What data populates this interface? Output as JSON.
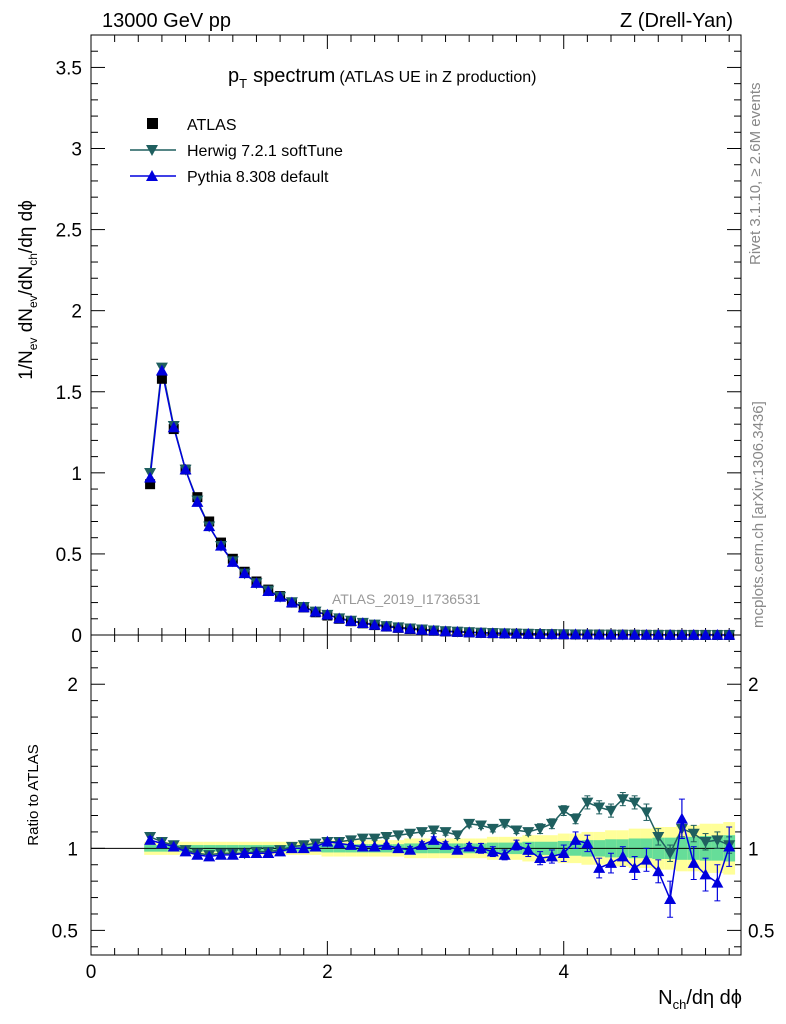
{
  "header": {
    "left": "13000 GeV pp",
    "right": "Z (Drell-Yan)"
  },
  "side_labels": {
    "rivet": "Rivet 3.1.10, ≥ 2.6M events",
    "mcplots": "mcplots.cern.ch [arXiv:1306.3436]"
  },
  "chart_data": {
    "type": "scatter",
    "title": "p_T spectrum",
    "title_parts": {
      "p": "p",
      "sub": "T",
      "rest": "spectrum",
      "note": "(ATLAS UE in Z production)"
    },
    "analysis_id": "ATLAS_2019_I1736531",
    "xlabel": {
      "main": "N",
      "sub": "ch",
      "rest": "/dη dϕ"
    },
    "ylabel": "1/N_ev dN_ev/dN_ch/dη dϕ",
    "ylabel_parts": {
      "a": "1/N",
      "a_sub": "ev",
      "b": " dN",
      "b_sub": "ev",
      "c": "/dN",
      "c_sub": "ch",
      "d": "/dη dϕ"
    },
    "ratio_ylabel": "Ratio to ATLAS",
    "xlim": [
      0,
      5.5
    ],
    "ylim": [
      0,
      3.7
    ],
    "ratio_ylim": [
      0.35,
      2.3
    ],
    "x_ticks": [
      "0",
      "2",
      "4"
    ],
    "y_ticks": [
      "0",
      "0.5",
      "1",
      "1.5",
      "2",
      "2.5",
      "3",
      "3.5"
    ],
    "ratio_ticks": [
      "0.5",
      "1",
      "2"
    ],
    "legend": {
      "placement": "top-left"
    },
    "x": [
      0.5,
      0.6,
      0.7,
      0.8,
      0.9,
      1.0,
      1.1,
      1.2,
      1.3,
      1.4,
      1.5,
      1.6,
      1.7,
      1.8,
      1.9,
      2.0,
      2.1,
      2.2,
      2.3,
      2.4,
      2.5,
      2.6,
      2.7,
      2.8,
      2.9,
      3.0,
      3.1,
      3.2,
      3.3,
      3.4,
      3.5,
      3.6,
      3.7,
      3.8,
      3.9,
      4.0,
      4.1,
      4.2,
      4.3,
      4.4,
      4.5,
      4.6,
      4.7,
      4.8,
      4.9,
      5.0,
      5.1,
      5.2,
      5.3,
      5.4
    ],
    "series": [
      {
        "name": "ATLAS",
        "color": "#000000",
        "marker": "square",
        "values": [
          0.93,
          1.58,
          1.27,
          1.02,
          0.85,
          0.7,
          0.57,
          0.47,
          0.39,
          0.33,
          0.28,
          0.24,
          0.2,
          0.17,
          0.14,
          0.12,
          0.1,
          0.085,
          0.072,
          0.061,
          0.052,
          0.044,
          0.037,
          0.031,
          0.026,
          0.022,
          0.019,
          0.016,
          0.013,
          0.011,
          0.0095,
          0.008,
          0.0068,
          0.0057,
          0.0048,
          0.004,
          0.0034,
          0.0029,
          0.0024,
          0.002,
          0.0017,
          0.0014,
          0.0012,
          0.001,
          0.0009,
          0.0007,
          0.0006,
          0.0005,
          0.0004,
          0.0003
        ]
      },
      {
        "name": "Herwig 7.2.1 softTune",
        "color": "#1f5f5f",
        "marker": "triangle-down",
        "values": [
          1.0,
          1.65,
          1.29,
          1.02,
          0.83,
          0.67,
          0.55,
          0.455,
          0.38,
          0.32,
          0.275,
          0.236,
          0.203,
          0.174,
          0.145,
          0.125,
          0.104,
          0.089,
          0.076,
          0.065,
          0.056,
          0.048,
          0.041,
          0.035,
          0.029,
          0.024,
          0.021,
          0.018,
          0.015,
          0.013,
          0.011,
          0.009,
          0.008,
          0.0066,
          0.0056,
          0.0048,
          0.004,
          0.0035,
          0.0029,
          0.0024,
          0.0021,
          0.0017,
          0.0015,
          0.0011,
          0.0009,
          0.0008,
          0.0007,
          0.0006,
          0.0004,
          0.0003
        ]
      },
      {
        "name": "Pythia 8.308 default",
        "color": "#0000dd",
        "marker": "triangle-up",
        "values": [
          0.97,
          1.63,
          1.28,
          1.02,
          0.82,
          0.67,
          0.55,
          0.45,
          0.38,
          0.32,
          0.27,
          0.235,
          0.2,
          0.17,
          0.143,
          0.125,
          0.102,
          0.086,
          0.073,
          0.062,
          0.052,
          0.044,
          0.037,
          0.031,
          0.027,
          0.022,
          0.019,
          0.016,
          0.013,
          0.011,
          0.0095,
          0.008,
          0.0066,
          0.0055,
          0.0047,
          0.0039,
          0.0036,
          0.003,
          0.0022,
          0.0018,
          0.0016,
          0.0012,
          0.0011,
          0.0009,
          0.0006,
          0.0008,
          0.0005,
          0.0004,
          0.0003,
          0.0003
        ]
      }
    ],
    "ratio": {
      "series": [
        {
          "name": "Herwig 7.2.1 softTune",
          "values": [
            1.07,
            1.04,
            1.02,
            0.99,
            0.97,
            0.96,
            0.97,
            0.97,
            0.97,
            0.98,
            0.98,
            0.99,
            1.01,
            1.02,
            1.03,
            1.04,
            1.04,
            1.05,
            1.06,
            1.06,
            1.07,
            1.08,
            1.09,
            1.1,
            1.11,
            1.1,
            1.08,
            1.15,
            1.14,
            1.12,
            1.15,
            1.11,
            1.1,
            1.12,
            1.15,
            1.23,
            1.18,
            1.28,
            1.25,
            1.23,
            1.3,
            1.28,
            1.22,
            1.07,
            0.97,
            1.12,
            1.09,
            1.04,
            1.05,
            1.02
          ],
          "errors": [
            0.02,
            0.01,
            0.01,
            0.01,
            0.01,
            0.01,
            0.01,
            0.01,
            0.01,
            0.01,
            0.01,
            0.01,
            0.01,
            0.01,
            0.01,
            0.01,
            0.01,
            0.01,
            0.01,
            0.01,
            0.01,
            0.01,
            0.01,
            0.01,
            0.02,
            0.02,
            0.02,
            0.02,
            0.02,
            0.02,
            0.02,
            0.02,
            0.02,
            0.03,
            0.03,
            0.03,
            0.03,
            0.04,
            0.04,
            0.04,
            0.04,
            0.04,
            0.05,
            0.05,
            0.05,
            0.05,
            0.05,
            0.05,
            0.05,
            0.05
          ]
        },
        {
          "name": "Pythia 8.308 default",
          "values": [
            1.05,
            1.03,
            1.01,
            0.98,
            0.96,
            0.95,
            0.96,
            0.96,
            0.97,
            0.97,
            0.97,
            0.98,
            1.0,
            1.0,
            1.01,
            1.04,
            1.03,
            1.02,
            1.01,
            1.01,
            1.02,
            1.0,
            0.99,
            1.02,
            1.05,
            1.02,
            0.99,
            1.01,
            1.0,
            0.98,
            0.96,
            1.02,
            0.99,
            0.94,
            0.95,
            0.97,
            1.05,
            1.03,
            0.88,
            0.91,
            0.95,
            0.88,
            0.93,
            0.86,
            0.69,
            1.18,
            0.91,
            0.84,
            0.79,
            1.01
          ],
          "errors": [
            0.02,
            0.01,
            0.01,
            0.01,
            0.01,
            0.01,
            0.01,
            0.01,
            0.01,
            0.01,
            0.01,
            0.01,
            0.01,
            0.01,
            0.01,
            0.01,
            0.01,
            0.01,
            0.01,
            0.01,
            0.01,
            0.01,
            0.02,
            0.02,
            0.02,
            0.02,
            0.02,
            0.02,
            0.03,
            0.03,
            0.03,
            0.03,
            0.04,
            0.04,
            0.04,
            0.05,
            0.05,
            0.05,
            0.06,
            0.06,
            0.06,
            0.07,
            0.07,
            0.07,
            0.11,
            0.12,
            0.1,
            0.1,
            0.11,
            0.12
          ]
        }
      ],
      "band_half_width": [
        0.02,
        0.02,
        0.02,
        0.02,
        0.02,
        0.02,
        0.02,
        0.02,
        0.02,
        0.02,
        0.02,
        0.02,
        0.02,
        0.02,
        0.02,
        0.025,
        0.025,
        0.025,
        0.025,
        0.025,
        0.025,
        0.025,
        0.03,
        0.03,
        0.03,
        0.03,
        0.03,
        0.03,
        0.03,
        0.035,
        0.035,
        0.035,
        0.04,
        0.04,
        0.04,
        0.045,
        0.045,
        0.05,
        0.05,
        0.055,
        0.055,
        0.06,
        0.06,
        0.065,
        0.065,
        0.07,
        0.07,
        0.075,
        0.075,
        0.08
      ],
      "band_colors": {
        "inner": "#66dd99",
        "outer": "#ffff99"
      }
    }
  }
}
